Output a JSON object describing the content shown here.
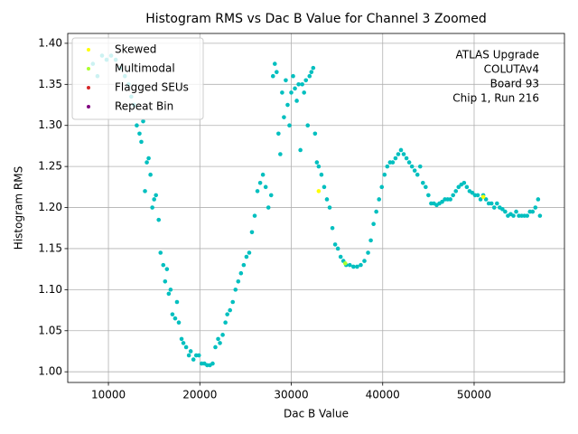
{
  "chart_data": {
    "type": "scatter",
    "title": "Histogram RMS vs Dac B Value for Channel 3 Zoomed",
    "x_label": "Dac B Value",
    "y_label": "Histogram RMS",
    "annotation": [
      "ATLAS Upgrade",
      "COLUTAv4",
      "Board 93",
      "Chip 1, Run 216"
    ],
    "xlim": [
      5550,
      59880
    ],
    "ylim": [
      0.987,
      1.412
    ],
    "xticks": [
      10000,
      20000,
      30000,
      40000,
      50000
    ],
    "yticks": [
      {
        "value": 1.0,
        "label": "1.00"
      },
      {
        "value": 1.05,
        "label": "1.05"
      },
      {
        "value": 1.1,
        "label": "1.10"
      },
      {
        "value": 1.15,
        "label": "1.15"
      },
      {
        "value": 1.2,
        "label": "1.20"
      },
      {
        "value": 1.25,
        "label": "1.25"
      },
      {
        "value": 1.3,
        "label": "1.30"
      },
      {
        "value": 1.35,
        "label": "1.35"
      },
      {
        "value": 1.4,
        "label": "1.40"
      }
    ],
    "grid": true,
    "legend": "upper left",
    "series": [
      {
        "color": "#00bfbf",
        "x": [
          8300,
          8800,
          9300,
          9800,
          10300,
          10800,
          11300,
          11800,
          12200,
          12500,
          12800,
          13100,
          13400,
          13600,
          13800,
          14000,
          14200,
          14400,
          14600,
          14800,
          15000,
          15200,
          15500,
          15700,
          16000,
          16200,
          16400,
          16600,
          16800,
          17000,
          17300,
          17500,
          17700,
          18000,
          18200,
          18500,
          18800,
          19000,
          19300,
          19600,
          19900,
          20200,
          20500,
          20800,
          21100,
          21400,
          21700,
          22000,
          22200,
          22500,
          22800,
          23000,
          23300,
          23600,
          23900,
          24200,
          24500,
          24800,
          25100,
          25400,
          25700,
          26000,
          26300,
          26600,
          26900,
          27200,
          27500,
          27800,
          28000,
          28200,
          28400,
          28600,
          28800,
          29000,
          29200,
          29400,
          29600,
          29800,
          30000,
          30200,
          30400,
          30600,
          30800,
          31000,
          31200,
          31400,
          31600,
          31800,
          32000,
          32200,
          32400,
          32600,
          32800,
          33000,
          33300,
          33600,
          33900,
          34200,
          34500,
          34800,
          35100,
          35400,
          35700,
          36000,
          36400,
          36800,
          37200,
          37600,
          38000,
          38400,
          38700,
          39000,
          39300,
          39600,
          39900,
          40200,
          40500,
          40800,
          41100,
          41400,
          41700,
          42000,
          42300,
          42600,
          42900,
          43200,
          43500,
          43800,
          44100,
          44400,
          44700,
          45000,
          45300,
          45600,
          45900,
          46200,
          46500,
          46800,
          47100,
          47400,
          47700,
          48000,
          48300,
          48600,
          48900,
          49200,
          49500,
          49800,
          50100,
          50400,
          50700,
          51000,
          51300,
          51600,
          51900,
          52200,
          52500,
          52800,
          53100,
          53400,
          53700,
          54000,
          54300,
          54600,
          54900,
          55200,
          55500,
          55800,
          56100,
          56400,
          56700,
          57000,
          57200
        ],
        "values": [
          1.375,
          1.36,
          1.385,
          1.38,
          1.385,
          1.38,
          1.37,
          1.36,
          1.35,
          1.335,
          1.325,
          1.3,
          1.29,
          1.28,
          1.305,
          1.22,
          1.255,
          1.26,
          1.24,
          1.2,
          1.21,
          1.215,
          1.185,
          1.145,
          1.13,
          1.11,
          1.125,
          1.095,
          1.1,
          1.07,
          1.065,
          1.085,
          1.06,
          1.04,
          1.035,
          1.03,
          1.02,
          1.025,
          1.015,
          1.02,
          1.02,
          1.01,
          1.01,
          1.008,
          1.008,
          1.01,
          1.03,
          1.04,
          1.035,
          1.045,
          1.06,
          1.07,
          1.075,
          1.085,
          1.1,
          1.11,
          1.12,
          1.13,
          1.14,
          1.145,
          1.17,
          1.19,
          1.22,
          1.23,
          1.24,
          1.225,
          1.2,
          1.215,
          1.36,
          1.375,
          1.365,
          1.29,
          1.265,
          1.34,
          1.31,
          1.355,
          1.325,
          1.3,
          1.34,
          1.36,
          1.345,
          1.33,
          1.35,
          1.27,
          1.35,
          1.34,
          1.355,
          1.3,
          1.36,
          1.365,
          1.37,
          1.29,
          1.255,
          1.25,
          1.24,
          1.225,
          1.21,
          1.2,
          1.175,
          1.155,
          1.15,
          1.14,
          1.135,
          1.13,
          1.13,
          1.128,
          1.128,
          1.13,
          1.135,
          1.145,
          1.16,
          1.18,
          1.195,
          1.21,
          1.225,
          1.24,
          1.25,
          1.255,
          1.255,
          1.26,
          1.265,
          1.27,
          1.265,
          1.26,
          1.255,
          1.25,
          1.245,
          1.24,
          1.25,
          1.23,
          1.225,
          1.215,
          1.205,
          1.205,
          1.203,
          1.205,
          1.207,
          1.21,
          1.21,
          1.21,
          1.215,
          1.22,
          1.225,
          1.228,
          1.23,
          1.225,
          1.22,
          1.218,
          1.215,
          1.215,
          1.21,
          1.215,
          1.21,
          1.205,
          1.205,
          1.2,
          1.205,
          1.2,
          1.198,
          1.195,
          1.19,
          1.192,
          1.19,
          1.195,
          1.19,
          1.19,
          1.19,
          1.19,
          1.195,
          1.195,
          1.2,
          1.21,
          1.19
        ]
      },
      {
        "name": "Skewed",
        "color": "#ffff00",
        "x": [
          33000,
          51000
        ],
        "values": [
          1.22,
          1.213
        ]
      },
      {
        "name": "Multimodal",
        "color": "#adff2f",
        "x": [
          35900
        ],
        "values": [
          1.132
        ]
      },
      {
        "name": "Flagged SEUs",
        "color": "#d62728",
        "x": [],
        "values": []
      },
      {
        "name": "Repeat Bin",
        "color": "#800080",
        "x": [],
        "values": []
      }
    ]
  }
}
